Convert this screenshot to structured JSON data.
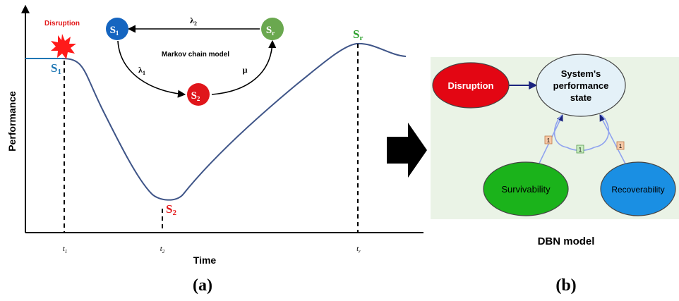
{
  "panel_a": {
    "y_axis_label": "Performance",
    "x_axis_label": "Time",
    "event_label": "Disruption",
    "ticks": [
      {
        "base": "t",
        "sub": "1"
      },
      {
        "base": "t",
        "sub": "2"
      },
      {
        "base": "t",
        "sub": "r"
      }
    ],
    "curve_states": [
      {
        "base": "S",
        "sub": "1",
        "color": "#1f77b4"
      },
      {
        "base": "S",
        "sub": "2",
        "color": "#e31a1c"
      },
      {
        "base": "S",
        "sub": "r",
        "color": "#2ca02c"
      }
    ],
    "markov": {
      "title": "Markov chain model",
      "nodes": [
        {
          "base": "S",
          "sub": "1",
          "color": "#1565c0"
        },
        {
          "base": "S",
          "sub": "2",
          "color": "#e0161b"
        },
        {
          "base": "S",
          "sub": "r",
          "color": "#6aa84f"
        }
      ],
      "edges": [
        {
          "base": "λ",
          "sub": "2"
        },
        {
          "base": "λ",
          "sub": "1"
        },
        {
          "base": "μ",
          "sub": ""
        }
      ]
    },
    "caption": "(a)"
  },
  "arrow": {
    "color": "#000000"
  },
  "panel_b": {
    "nodes": {
      "disruption": {
        "label": "Disruption",
        "color": "#e30613"
      },
      "performance": {
        "lines": [
          "System's",
          "performance",
          "state"
        ],
        "color": "#e4f1f8"
      },
      "survivability": {
        "label": "Survivability",
        "color": "#1bb31b"
      },
      "recoverability": {
        "label": "Recoverability",
        "color": "#1a8fe3"
      }
    },
    "lag_labels": [
      "1",
      "1",
      "1"
    ],
    "title": "DBN model",
    "caption": "(b)"
  }
}
